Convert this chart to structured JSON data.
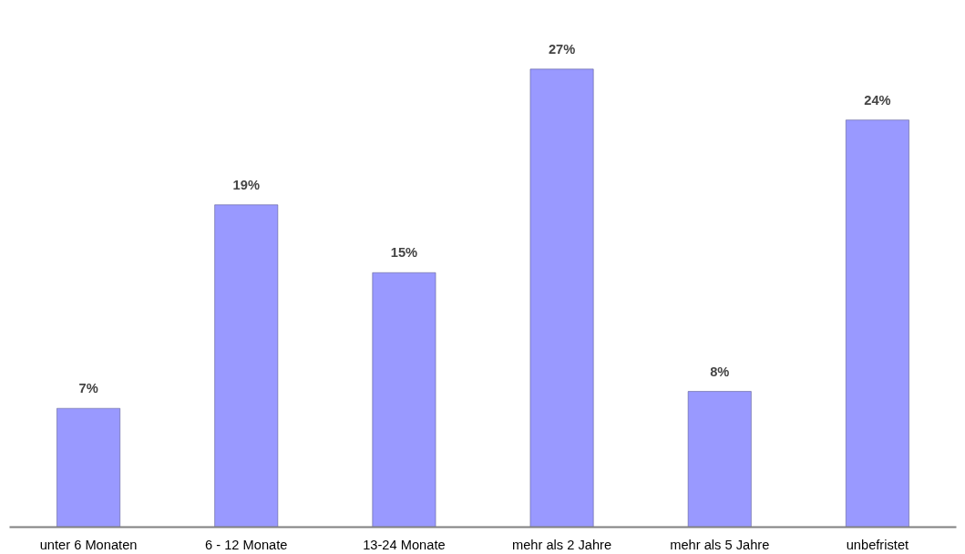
{
  "chart_data": {
    "type": "bar",
    "categories": [
      "unter 6 Monaten",
      "6 - 12 Monate",
      "13-24 Monate",
      "mehr als 2 Jahre",
      "mehr als 5 Jahre",
      "unbefristet"
    ],
    "values": [
      7,
      19,
      15,
      27,
      8,
      24
    ],
    "value_labels": [
      "7%",
      "19%",
      "15%",
      "27%",
      "8%",
      "24%"
    ],
    "color": "#9999ff",
    "grid": false
  }
}
